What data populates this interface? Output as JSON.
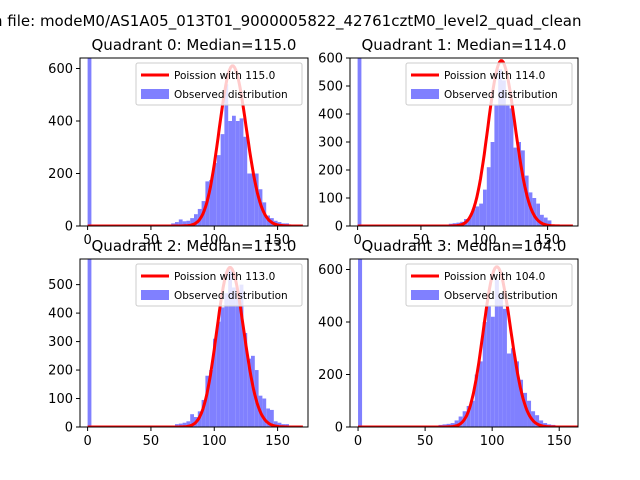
{
  "figure": {
    "suptitle": "n file: modeM0/AS1A05_013T01_9000005822_42761cztM0_level2_quad_clean"
  },
  "colors": {
    "hist": "#8080ff",
    "poisson": "#ff0000",
    "axis": "#000000",
    "legend_border": "#cccccc"
  },
  "chart_data": [
    {
      "type": "bar",
      "title": "Quadrant 0: Median=115.0",
      "xlim": [
        -6,
        174
      ],
      "ylim": [
        0,
        640
      ],
      "xticks": [
        0,
        50,
        100,
        150
      ],
      "yticks": [
        0,
        200,
        400,
        600
      ],
      "legend": {
        "line_label": "Poission with 115.0",
        "hist_label": "Observed distribution",
        "placement": "top-right"
      },
      "poisson_mean": 115.0,
      "poisson_peak": 610,
      "bin_width": 3,
      "bins": [
        [
          0,
          640
        ],
        [
          66,
          10
        ],
        [
          69,
          15
        ],
        [
          72,
          25
        ],
        [
          75,
          18
        ],
        [
          78,
          20
        ],
        [
          81,
          30
        ],
        [
          84,
          45
        ],
        [
          87,
          65
        ],
        [
          90,
          95
        ],
        [
          93,
          170
        ],
        [
          96,
          175
        ],
        [
          99,
          240
        ],
        [
          102,
          270
        ],
        [
          105,
          350
        ],
        [
          108,
          540
        ],
        [
          111,
          400
        ],
        [
          114,
          420
        ],
        [
          117,
          400
        ],
        [
          120,
          410
        ],
        [
          123,
          340
        ],
        [
          126,
          200
        ],
        [
          129,
          200
        ],
        [
          132,
          200
        ],
        [
          135,
          140
        ],
        [
          138,
          90
        ],
        [
          141,
          40
        ],
        [
          144,
          30
        ],
        [
          147,
          20
        ],
        [
          150,
          15
        ],
        [
          153,
          10
        ],
        [
          156,
          10
        ]
      ]
    },
    {
      "type": "bar",
      "title": "Quadrant 1: Median=114.0",
      "xlim": [
        -6,
        174
      ],
      "ylim": [
        0,
        600
      ],
      "xticks": [
        0,
        50,
        100,
        150
      ],
      "yticks": [
        0,
        100,
        200,
        300,
        400,
        500,
        600
      ],
      "legend": {
        "line_label": "Poission with 114.0",
        "hist_label": "Observed distribution",
        "placement": "top-right"
      },
      "poisson_mean": 114.0,
      "poisson_peak": 590,
      "bin_width": 3,
      "bins": [
        [
          0,
          600
        ],
        [
          69,
          5
        ],
        [
          72,
          8
        ],
        [
          75,
          10
        ],
        [
          78,
          12
        ],
        [
          81,
          15
        ],
        [
          84,
          25
        ],
        [
          87,
          30
        ],
        [
          90,
          60
        ],
        [
          93,
          70
        ],
        [
          96,
          80
        ],
        [
          99,
          130
        ],
        [
          102,
          210
        ],
        [
          105,
          300
        ],
        [
          108,
          430
        ],
        [
          111,
          560
        ],
        [
          114,
          520
        ],
        [
          117,
          430
        ],
        [
          120,
          420
        ],
        [
          123,
          280
        ],
        [
          126,
          300
        ],
        [
          129,
          270
        ],
        [
          132,
          180
        ],
        [
          135,
          120
        ],
        [
          138,
          100
        ],
        [
          141,
          80
        ],
        [
          144,
          40
        ],
        [
          147,
          30
        ],
        [
          150,
          20
        ]
      ]
    },
    {
      "type": "bar",
      "title": "Quadrant 2: Median=113.0",
      "xlim": [
        -6,
        174
      ],
      "ylim": [
        0,
        590
      ],
      "xticks": [
        0,
        50,
        100,
        150
      ],
      "yticks": [
        0,
        100,
        200,
        300,
        400,
        500
      ],
      "legend": {
        "line_label": "Poission with 113.0",
        "hist_label": "Observed distribution",
        "placement": "top-right"
      },
      "poisson_mean": 113.0,
      "poisson_peak": 560,
      "bin_width": 3,
      "bins": [
        [
          0,
          590
        ],
        [
          66,
          5
        ],
        [
          69,
          10
        ],
        [
          72,
          12
        ],
        [
          75,
          15
        ],
        [
          78,
          20
        ],
        [
          81,
          45
        ],
        [
          84,
          35
        ],
        [
          87,
          55
        ],
        [
          90,
          95
        ],
        [
          93,
          180
        ],
        [
          96,
          200
        ],
        [
          99,
          310
        ],
        [
          102,
          370
        ],
        [
          105,
          420
        ],
        [
          108,
          470
        ],
        [
          111,
          550
        ],
        [
          114,
          490
        ],
        [
          117,
          450
        ],
        [
          120,
          500
        ],
        [
          123,
          330
        ],
        [
          126,
          240
        ],
        [
          129,
          250
        ],
        [
          132,
          200
        ],
        [
          135,
          110
        ],
        [
          138,
          100
        ],
        [
          141,
          65
        ],
        [
          144,
          60
        ],
        [
          147,
          20
        ],
        [
          150,
          15
        ],
        [
          153,
          10
        ],
        [
          156,
          10
        ]
      ]
    },
    {
      "type": "bar",
      "title": "Quadrant 3: Median=104.0",
      "xlim": [
        -6,
        164
      ],
      "ylim": [
        0,
        640
      ],
      "xticks": [
        0,
        50,
        100,
        150
      ],
      "yticks": [
        0,
        200,
        400,
        600
      ],
      "legend": {
        "line_label": "Poission with 104.0",
        "hist_label": "Observed distribution",
        "placement": "top-right"
      },
      "poisson_mean": 104.0,
      "poisson_peak": 610,
      "bin_width": 3,
      "bins": [
        [
          0,
          640
        ],
        [
          57,
          5
        ],
        [
          60,
          8
        ],
        [
          63,
          10
        ],
        [
          66,
          12
        ],
        [
          69,
          15
        ],
        [
          72,
          25
        ],
        [
          75,
          40
        ],
        [
          78,
          60
        ],
        [
          81,
          80
        ],
        [
          84,
          100
        ],
        [
          87,
          200
        ],
        [
          90,
          250
        ],
        [
          93,
          400
        ],
        [
          96,
          460
        ],
        [
          99,
          420
        ],
        [
          102,
          560
        ],
        [
          105,
          510
        ],
        [
          108,
          450
        ],
        [
          111,
          280
        ],
        [
          114,
          300
        ],
        [
          117,
          250
        ],
        [
          120,
          180
        ],
        [
          123,
          130
        ],
        [
          126,
          100
        ],
        [
          129,
          60
        ],
        [
          132,
          45
        ],
        [
          135,
          25
        ],
        [
          138,
          15
        ],
        [
          141,
          10
        ],
        [
          144,
          8
        ]
      ]
    }
  ]
}
